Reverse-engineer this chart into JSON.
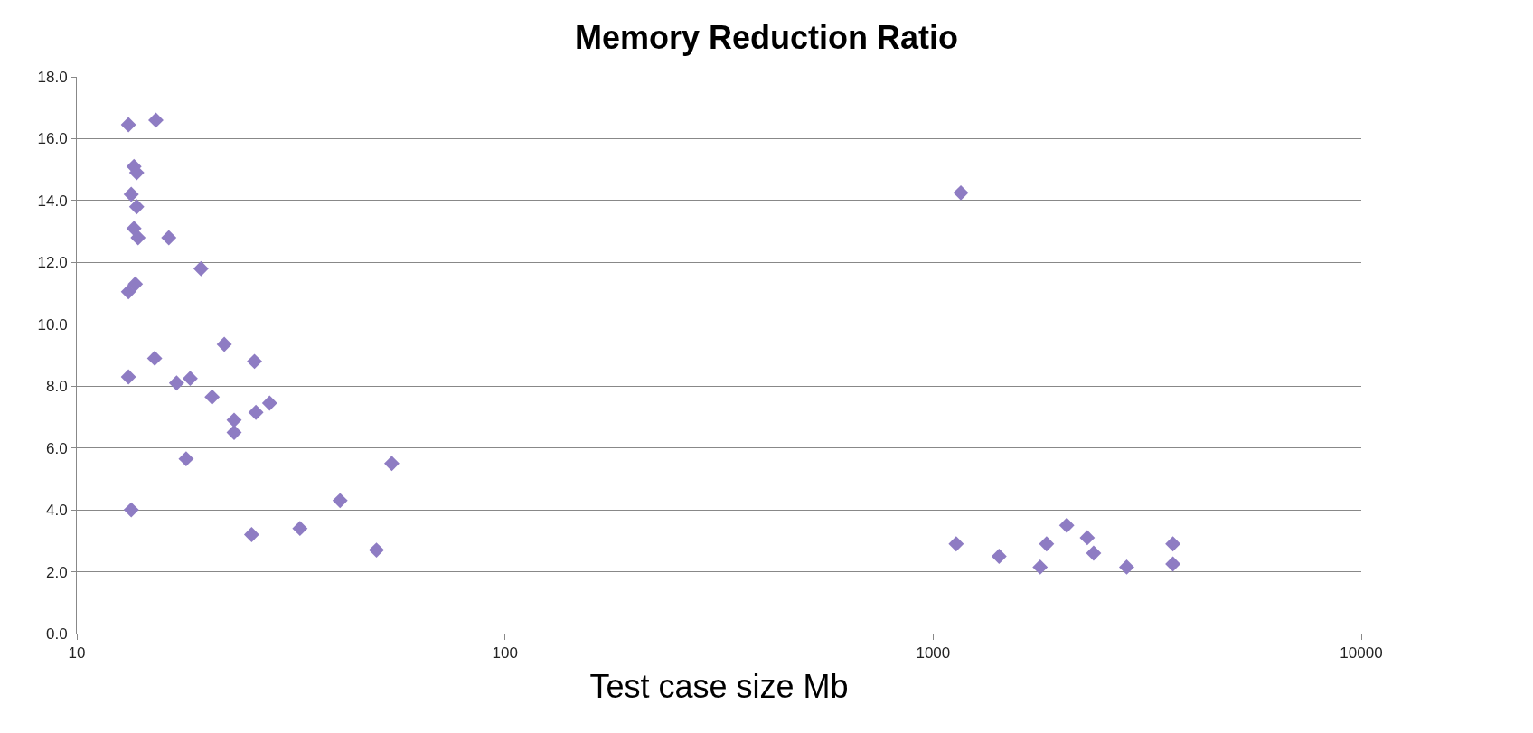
{
  "chart_data": {
    "type": "scatter",
    "title": "Memory Reduction Ratio",
    "xlabel": "Test case size Mb",
    "log": "x",
    "grid": "y",
    "legend": false,
    "marker": "diamond",
    "xlim": [
      10,
      10000
    ],
    "xticks": [
      10,
      100,
      1000,
      10000
    ],
    "ylim": [
      0,
      18
    ],
    "yticks": [
      {
        "value": 0,
        "label": "0.0"
      },
      {
        "value": 2,
        "label": "2.0"
      },
      {
        "value": 4,
        "label": "4.0"
      },
      {
        "value": 6,
        "label": "6.0"
      },
      {
        "value": 8,
        "label": "8.0"
      },
      {
        "value": 10,
        "label": "10.0"
      },
      {
        "value": 12,
        "label": "12.0"
      },
      {
        "value": 14,
        "label": "14.0"
      },
      {
        "value": 16,
        "label": "16.0"
      },
      {
        "value": 18,
        "label": "18.0"
      }
    ],
    "series": [
      {
        "color": "#8e7cc3",
        "x": [
          13.2,
          15.3,
          13.6,
          13.8,
          13.4,
          13.8,
          13.6,
          13.9,
          16.4,
          19.5,
          13.2,
          13.7,
          13.2,
          15.2,
          17.1,
          18.4,
          22.1,
          26.0,
          20.7,
          23.3,
          23.3,
          26.2,
          28.2,
          18.0,
          13.4,
          25.6,
          33.2,
          41.2,
          50.1,
          54.4,
          1132,
          1161,
          1426,
          1778,
          1841,
          2052,
          2291,
          2371,
          2832,
          3631,
          3631
        ],
        "values": [
          16.45,
          16.6,
          15.1,
          14.9,
          14.2,
          13.8,
          13.1,
          12.8,
          12.8,
          11.8,
          11.05,
          11.3,
          8.3,
          8.9,
          8.1,
          8.25,
          9.35,
          8.8,
          7.65,
          6.9,
          6.5,
          7.15,
          7.45,
          5.65,
          4.0,
          3.2,
          3.4,
          4.3,
          2.7,
          5.5,
          2.9,
          14.25,
          2.5,
          2.15,
          2.9,
          3.5,
          3.1,
          2.6,
          2.15,
          2.9,
          2.25
        ]
      }
    ]
  }
}
